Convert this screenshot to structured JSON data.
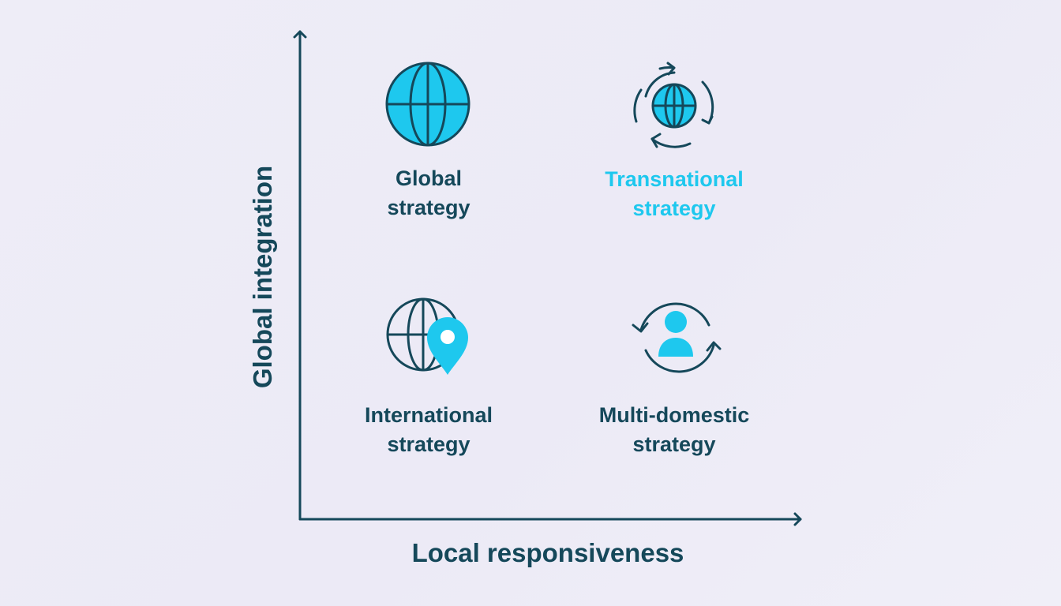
{
  "axes": {
    "x_title": "Local responsiveness",
    "y_title": "Global integration"
  },
  "quadrants": {
    "top_left": {
      "line1": "Global",
      "line2": "strategy",
      "icon": "globe-icon"
    },
    "top_right": {
      "line1": "Transnational",
      "line2": "strategy",
      "icon": "rotating-globe-icon"
    },
    "bottom_left": {
      "line1": "International",
      "line2": "strategy",
      "icon": "globe-pin-icon"
    },
    "bottom_right": {
      "line1": "Multi-domestic",
      "line2": "strategy",
      "icon": "person-cycle-icon"
    }
  },
  "colors": {
    "primary": "#15485a",
    "accent": "#1ec8ee",
    "background": "#eeedf7"
  }
}
